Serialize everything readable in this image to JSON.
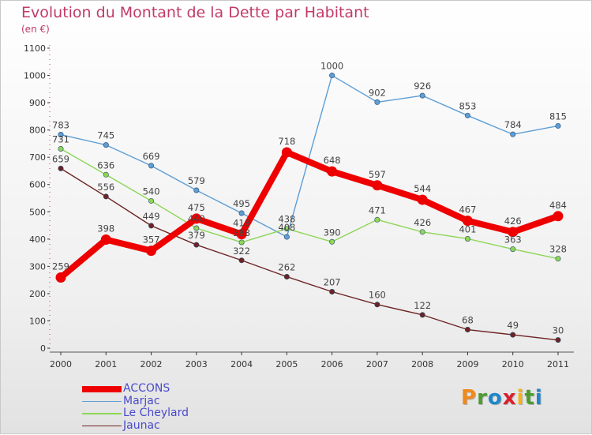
{
  "title": "Evolution du Montant de la Dette par Habitant",
  "subtitle": "(en €)",
  "logo": {
    "text": "Proxiti",
    "letters": [
      "P",
      "r",
      "o",
      "x",
      "i",
      "t",
      "i"
    ],
    "colors": [
      "#f08a1c",
      "#4d9b2f",
      "#1f86c9",
      "#d7202c",
      "#f2b31b",
      "#4d9b2f",
      "#1f86c9"
    ]
  },
  "chart_data": {
    "type": "line",
    "x": [
      "2000",
      "2001",
      "2002",
      "2003",
      "2004",
      "2005",
      "2006",
      "2007",
      "2008",
      "2009",
      "2010",
      "2011"
    ],
    "ylim": [
      0,
      1100
    ],
    "yticks": [
      "0",
      "100",
      "200",
      "300",
      "400",
      "500",
      "600",
      "700",
      "800",
      "900",
      "1000",
      "1100"
    ],
    "grid": false,
    "legend_position": "bottom-left",
    "series": [
      {
        "name": "ACCONS",
        "color": "#ee0000",
        "emphasis": true,
        "values": [
          259,
          398,
          357,
          475,
          418,
          718,
          648,
          597,
          544,
          467,
          426,
          484
        ],
        "labels": [
          "259",
          "398",
          "357",
          "475",
          "418",
          "718",
          "648",
          "597",
          "544",
          "467",
          "426",
          "484"
        ]
      },
      {
        "name": "Marjac",
        "color": "#5d9ed6",
        "emphasis": false,
        "values": [
          783,
          745,
          669,
          579,
          495,
          408,
          1000,
          902,
          926,
          853,
          784,
          815
        ],
        "labels": [
          "783",
          "745",
          "669",
          "579",
          "495",
          "408",
          "1000",
          "902",
          "926",
          "853",
          "784",
          "815"
        ]
      },
      {
        "name": "Le Cheylard",
        "color": "#8dd656",
        "emphasis": false,
        "values": [
          731,
          636,
          540,
          440,
          388,
          438,
          390,
          471,
          426,
          401,
          363,
          328
        ],
        "labels": [
          "731",
          "636",
          "540",
          "440",
          "388",
          "438",
          "390",
          "471",
          "426",
          "401",
          "363",
          "328"
        ]
      },
      {
        "name": "Jaunac",
        "color": "#6e2323",
        "emphasis": false,
        "values": [
          659,
          556,
          449,
          379,
          322,
          262,
          207,
          160,
          122,
          68,
          49,
          30
        ],
        "labels": [
          "659",
          "556",
          "449",
          "379",
          "322",
          "262",
          "207",
          "160",
          "122",
          "68",
          "49",
          "30"
        ]
      }
    ]
  }
}
